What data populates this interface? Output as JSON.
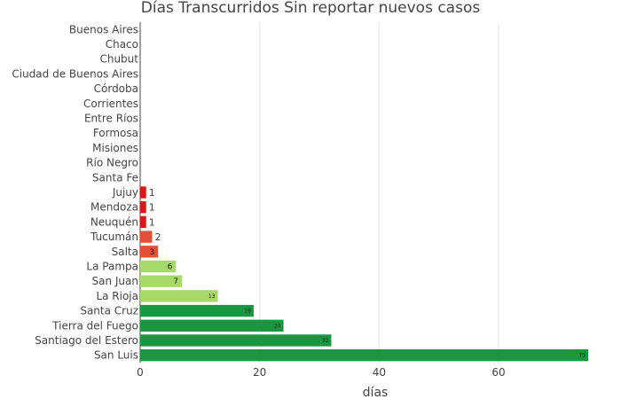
{
  "chart_data": {
    "type": "bar",
    "orientation": "horizontal",
    "title": "Días Transcurridos Sin reportar nuevos casos",
    "xlabel": "días",
    "ylabel": "",
    "xlim": [
      0,
      75
    ],
    "xticks": [
      0,
      20,
      40,
      60
    ],
    "grid": true,
    "legend": "none",
    "categories": [
      "Buenos Aires",
      "Chaco",
      "Chubut",
      "Ciudad de Buenos Aires",
      "Córdoba",
      "Corrientes",
      "Entre Ríos",
      "Formosa",
      "Misiones",
      "Río Negro",
      "Santa Fe",
      "Jujuy",
      "Mendoza",
      "Neuquén",
      "Tucumán",
      "Salta",
      "La Pampa",
      "San Juan",
      "La Rioja",
      "Santa Cruz",
      "Tierra del Fuego",
      "Santiago del Estero",
      "San Luis"
    ],
    "values": [
      null,
      null,
      null,
      null,
      null,
      null,
      null,
      null,
      null,
      null,
      null,
      1,
      1,
      1,
      2,
      3,
      6,
      7,
      13,
      19,
      24,
      32,
      75
    ],
    "bar_colors": [
      "#d62728",
      "#d62728",
      "#d62728",
      "#d62728",
      "#d62728",
      "#d62728",
      "#d62728",
      "#d62728",
      "#d62728",
      "#d62728",
      "#d62728",
      "#d7191c",
      "#d7191c",
      "#d7191c",
      "#e2503a",
      "#e2503a",
      "#a6d96a",
      "#a6d96a",
      "#a6d96a",
      "#1a9641",
      "#1a9641",
      "#1a9641",
      "#1a9641"
    ]
  }
}
